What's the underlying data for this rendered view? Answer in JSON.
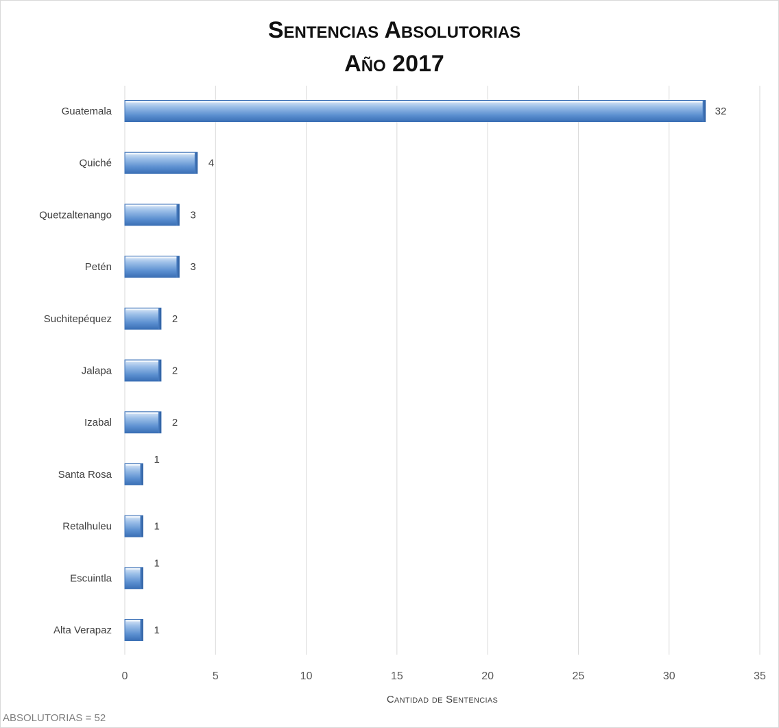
{
  "title": {
    "line1": "Sentencias Absolutorias",
    "line2": "Año 2017"
  },
  "x_axis_title": "Cantidad de Sentencias",
  "footer_note": "ABSOLUTORIAS = 52",
  "colors": {
    "bar": "#4f81bd",
    "bar_light": "#c6dcf4",
    "grid": "#d9d9d9",
    "text": "#404040"
  },
  "chart_data": {
    "type": "bar",
    "orientation": "horizontal",
    "categories": [
      "Guatemala",
      "Quiché",
      "Quetzaltenango",
      "Petén",
      "Suchitepéquez",
      "Jalapa",
      "Izabal",
      "Santa Rosa",
      "Retalhuleu",
      "Escuintla",
      "Alta Verapaz"
    ],
    "values": [
      32,
      4,
      3,
      3,
      2,
      2,
      2,
      1,
      1,
      1,
      1
    ],
    "xlabel": "Cantidad de Sentencias",
    "xlim": [
      0,
      35
    ],
    "xticks": [
      0,
      5,
      10,
      15,
      20,
      25,
      30,
      35
    ],
    "grid": "vertical",
    "data_labels": true
  }
}
